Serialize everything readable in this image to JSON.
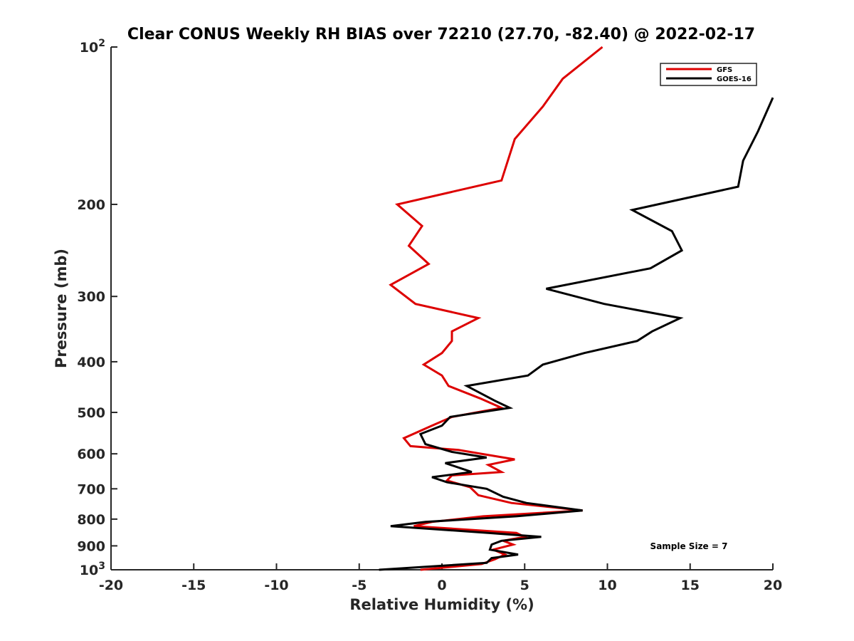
{
  "chart_data": {
    "type": "line",
    "title": "Clear CONUS Weekly RH BIAS over 72210 (27.70, -82.40) @ 2022-02-17",
    "xlabel": "Relative Humidity (%)",
    "ylabel": "Pressure (mb)",
    "xlim": [
      -20,
      20
    ],
    "ylim": [
      1000,
      100
    ],
    "yscale": "log",
    "y_reversed": true,
    "xticks": [
      -20,
      -15,
      -10,
      -5,
      0,
      5,
      10,
      15,
      20
    ],
    "xtick_labels": [
      "-20",
      "-15",
      "-10",
      "-5",
      "0",
      "5",
      "10",
      "15",
      "20"
    ],
    "yticks": [
      100,
      200,
      300,
      400,
      500,
      600,
      700,
      800,
      900,
      1000
    ],
    "ytick_labels": [
      {
        "value": 100,
        "base": "10",
        "exp": "2"
      },
      {
        "value": 200,
        "base": "200",
        "exp": ""
      },
      {
        "value": 300,
        "base": "300",
        "exp": ""
      },
      {
        "value": 400,
        "base": "400",
        "exp": ""
      },
      {
        "value": 500,
        "base": "500",
        "exp": ""
      },
      {
        "value": 600,
        "base": "600",
        "exp": ""
      },
      {
        "value": 700,
        "base": "700",
        "exp": ""
      },
      {
        "value": 800,
        "base": "800",
        "exp": ""
      },
      {
        "value": 900,
        "base": "900",
        "exp": ""
      },
      {
        "value": 1000,
        "base": "10",
        "exp": "3"
      }
    ],
    "grid": false,
    "legend_position": "top-right",
    "annotation": "Sample Size = 7",
    "series": [
      {
        "name": "GFS",
        "color": "#dd0000",
        "points": [
          [
            9.7,
            100
          ],
          [
            7.3,
            115
          ],
          [
            6.1,
            130
          ],
          [
            4.4,
            150
          ],
          [
            3.6,
            180
          ],
          [
            -2.7,
            200
          ],
          [
            -1.2,
            220
          ],
          [
            -2.0,
            240
          ],
          [
            -0.8,
            260
          ],
          [
            -3.1,
            285
          ],
          [
            -1.6,
            310
          ],
          [
            2.2,
            330
          ],
          [
            0.6,
            350
          ],
          [
            0.6,
            365
          ],
          [
            0.0,
            385
          ],
          [
            -1.1,
            405
          ],
          [
            0.0,
            425
          ],
          [
            0.4,
            445
          ],
          [
            2.3,
            470
          ],
          [
            3.6,
            490
          ],
          [
            0.6,
            510
          ],
          [
            -0.6,
            530
          ],
          [
            -2.3,
            560
          ],
          [
            -1.9,
            580
          ],
          [
            1.0,
            590
          ],
          [
            4.4,
            615
          ],
          [
            2.8,
            630
          ],
          [
            3.6,
            650
          ],
          [
            0.6,
            660
          ],
          [
            0.3,
            675
          ],
          [
            1.7,
            695
          ],
          [
            2.2,
            720
          ],
          [
            4.2,
            745
          ],
          [
            8.5,
            770
          ],
          [
            2.5,
            790
          ],
          [
            -0.6,
            810
          ],
          [
            -1.7,
            825
          ],
          [
            4.5,
            850
          ],
          [
            5.0,
            865
          ],
          [
            3.7,
            880
          ],
          [
            4.3,
            895
          ],
          [
            3.1,
            915
          ],
          [
            3.8,
            935
          ],
          [
            3.2,
            955
          ],
          [
            2.4,
            975
          ],
          [
            -1.3,
            1000
          ]
        ]
      },
      {
        "name": "GOES-16",
        "color": "#000000",
        "points": [
          [
            20.0,
            125
          ],
          [
            19.1,
            145
          ],
          [
            18.2,
            165
          ],
          [
            17.9,
            185
          ],
          [
            11.5,
            205
          ],
          [
            13.9,
            225
          ],
          [
            14.5,
            245
          ],
          [
            12.6,
            265
          ],
          [
            6.3,
            290
          ],
          [
            9.8,
            310
          ],
          [
            14.4,
            330
          ],
          [
            12.7,
            350
          ],
          [
            11.8,
            365
          ],
          [
            8.6,
            385
          ],
          [
            6.1,
            405
          ],
          [
            5.2,
            425
          ],
          [
            1.5,
            445
          ],
          [
            3.2,
            475
          ],
          [
            4.1,
            490
          ],
          [
            0.5,
            510
          ],
          [
            0.0,
            530
          ],
          [
            -1.3,
            550
          ],
          [
            -1.0,
            575
          ],
          [
            0.6,
            595
          ],
          [
            2.7,
            610
          ],
          [
            0.2,
            625
          ],
          [
            1.8,
            650
          ],
          [
            -0.6,
            665
          ],
          [
            0.3,
            680
          ],
          [
            2.7,
            700
          ],
          [
            3.7,
            725
          ],
          [
            5.1,
            745
          ],
          [
            8.5,
            770
          ],
          [
            4.5,
            790
          ],
          [
            -1.0,
            810
          ],
          [
            -3.1,
            825
          ],
          [
            2.8,
            850
          ],
          [
            6.0,
            865
          ],
          [
            3.6,
            880
          ],
          [
            3.0,
            895
          ],
          [
            2.9,
            915
          ],
          [
            4.6,
            935
          ],
          [
            3.0,
            950
          ],
          [
            2.7,
            970
          ],
          [
            -3.8,
            1000
          ]
        ]
      }
    ]
  },
  "colors": {
    "axis": "#262626",
    "background": "#ffffff"
  }
}
